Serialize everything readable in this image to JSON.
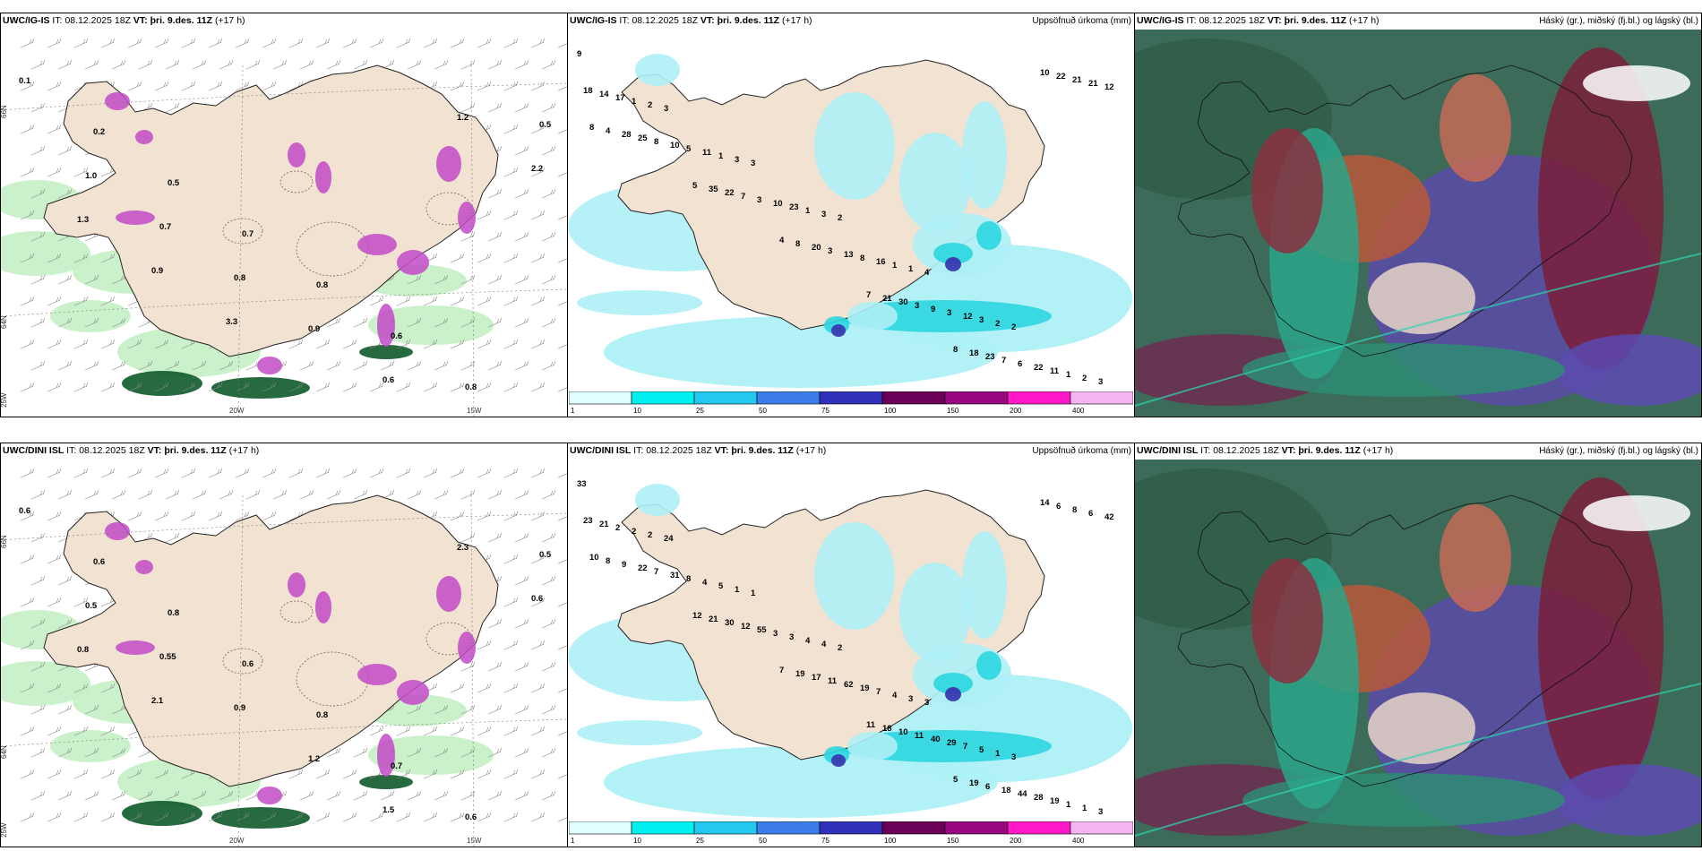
{
  "row1": {
    "panel1": {
      "model": "UWC/IG-IS",
      "it_label": "IT:",
      "it_value": "08.12.2025 18Z",
      "vt_label": "VT:",
      "vt_value": "þri. 9.des. 11Z",
      "lead": "(+17 h)"
    },
    "panel2": {
      "model": "UWC/IG-IS",
      "it_label": "IT:",
      "it_value": "08.12.2025 18Z",
      "vt_label": "VT:",
      "vt_value": "þri. 9.des. 11Z",
      "lead": "(+17 h)",
      "right_title": "Uppsöfnuð úrkoma (mm)"
    },
    "panel3": {
      "model": "UWC/IG-IS",
      "it_label": "IT:",
      "it_value": "08.12.2025 18Z",
      "vt_label": "VT:",
      "vt_value": "þri. 9.des. 11Z",
      "lead": "(+17 h)",
      "right_title": "Háský (gr.), miðský (fj.bl.) og lágský (bl.)"
    }
  },
  "row2": {
    "panel1": {
      "model": "UWC/DINI ISL",
      "it_label": "IT:",
      "it_value": "08.12.2025 18Z",
      "vt_label": "VT:",
      "vt_value": "þri. 9.des. 11Z",
      "lead": "(+17 h)"
    },
    "panel2": {
      "model": "UWC/DINI ISL",
      "it_label": "IT:",
      "it_value": "08.12.2025 18Z",
      "vt_label": "VT:",
      "vt_value": "þri. 9.des. 11Z",
      "lead": "(+17 h)",
      "right_title": "Uppsöfnuð úrkoma (mm)"
    },
    "panel3": {
      "model": "UWC/DINI ISL",
      "it_label": "IT:",
      "it_value": "08.12.2025 18Z",
      "vt_label": "VT:",
      "vt_value": "þri. 9.des. 11Z",
      "lead": "(+17 h)",
      "right_title": "Háský (gr.), miðský (fj.bl.) og lágský (bl.)"
    }
  },
  "axes": {
    "lat66": "66N",
    "lat64": "64N",
    "lon25": "25W",
    "lon20": "20W",
    "lon15": "15W"
  },
  "colorbar": {
    "labels": [
      "1",
      "10",
      "25",
      "50",
      "75",
      "100",
      "150",
      "200",
      "400"
    ],
    "colors": [
      "#e0ffff",
      "#00f0f0",
      "#22c8ee",
      "#3d7ce8",
      "#3030b8",
      "#6a0058",
      "#9a0880",
      "#ff18c8",
      "#f4b4f4"
    ]
  },
  "map_colors": {
    "land": "#f1e2d2",
    "sea": "#ffffff",
    "precip_light": "#aef0f6",
    "precip_mid": "#2cd6e0",
    "precip_heavy": "#3a3ab0",
    "snow_purple": "#c24ac8",
    "green_light": "#c2eec2",
    "green_dark": "#0f5a2a"
  },
  "precip_labels": {
    "ig_is": [
      "9",
      "3",
      "3",
      "2",
      "4",
      "2",
      "3",
      "2",
      "3",
      "3",
      "1",
      "2",
      "2",
      "1",
      "1",
      "1",
      "1",
      "3",
      "1",
      "17",
      "11",
      "23",
      "16",
      "12",
      "11",
      "14",
      "5",
      "10",
      "8",
      "3",
      "22",
      "18",
      "10",
      "3",
      "13",
      "9",
      "6",
      "12",
      "8",
      "7",
      "3",
      "3",
      "7",
      "21",
      "25",
      "22",
      "20",
      "30",
      "23",
      "21",
      "28",
      "35",
      "8",
      "21",
      "18",
      "22",
      "4",
      "5",
      "4",
      "7",
      "8",
      "10",
      "8"
    ],
    "dini": [
      "33",
      "24",
      "1",
      "2",
      "3",
      "3",
      "3",
      "2",
      "1",
      "4",
      "3",
      "1",
      "1",
      "2",
      "5",
      "4",
      "4",
      "5",
      "1",
      "2",
      "4",
      "3",
      "7",
      "7",
      "19",
      "21",
      "8",
      "3",
      "19",
      "29",
      "28",
      "23",
      "31",
      "55",
      "62",
      "40",
      "44",
      "42",
      "7",
      "12",
      "11",
      "11",
      "18",
      "6",
      "22",
      "30",
      "17",
      "10",
      "6",
      "8",
      "9",
      "21",
      "19",
      "18",
      "19",
      "6",
      "8",
      "12",
      "7",
      "11",
      "5",
      "14",
      "10"
    ]
  },
  "wet_labels": {
    "ig_is": [
      "0.1",
      "0.2",
      "0.5",
      "0.7",
      "0.8",
      "0.6",
      "0.8",
      "0.5",
      "1.0",
      "0.7",
      "0.8",
      "0.9",
      "0.6",
      "1.2",
      "2.2",
      "1.3",
      "0.9",
      "3.3"
    ],
    "dini": [
      "0.6",
      "0.6",
      "0.8",
      "0.6",
      "0.8",
      "0.7",
      "0.6",
      "0.5",
      "0.5",
      "0.55",
      "0.9",
      "1.2",
      "1.5",
      "2.3",
      "0.6",
      "0.8",
      "2.1"
    ]
  }
}
